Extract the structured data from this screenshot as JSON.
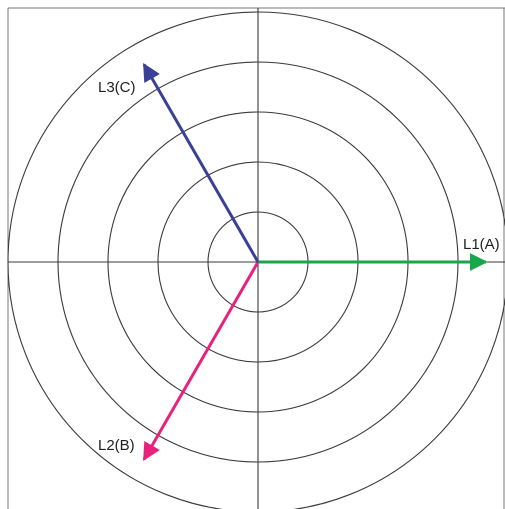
{
  "diagram": {
    "type": "phasor-diagram",
    "ring_count": 5,
    "phasors": [
      {
        "label": "L1(A)",
        "angle_deg": 0,
        "magnitude": 1.0,
        "color": "#1aa64a",
        "icon": "arrow-right-icon"
      },
      {
        "label": "L2(B)",
        "angle_deg": -120,
        "magnitude": 1.0,
        "color": "#e8207e",
        "icon": "arrow-down-left-icon"
      },
      {
        "label": "L3(C)",
        "angle_deg": 120,
        "magnitude": 1.0,
        "color": "#3a3f98",
        "icon": "arrow-up-left-icon"
      }
    ],
    "colors": {
      "grid": "#3a3a3a",
      "background": "#ffffff"
    }
  }
}
